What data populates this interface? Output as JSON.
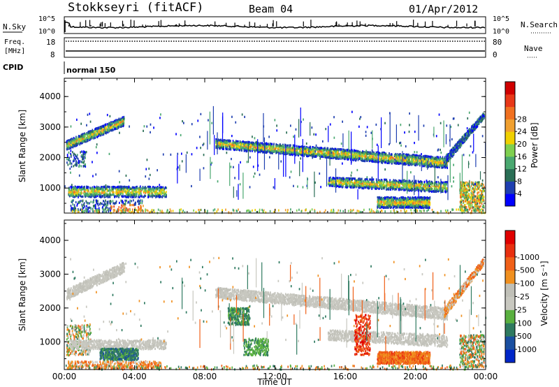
{
  "header": {
    "station": "Stokkseyri (fitACF)",
    "beam": "Beam 04",
    "date": "01/Apr/2012"
  },
  "panels": {
    "sky": {
      "label": "N.Sky",
      "tick_top": "10^5",
      "tick_bottom": "10^0",
      "right_label": "N.Search",
      "right_tick_top": "10^5",
      "right_tick_bottom": "10^0"
    },
    "freq": {
      "label_top": "Freq.",
      "label_unit": "[MHz]",
      "tick_top": "18",
      "tick_bottom": "8",
      "right_label": "Nave",
      "right_tick_top": "80",
      "right_tick_bottom": "0"
    },
    "cpid": {
      "label": "CPID",
      "value": "normal 150"
    }
  },
  "chart_data": [
    {
      "type": "heatmap",
      "name": "power",
      "ylabel": "Slant Range [km]",
      "xlabel": "",
      "ylim": [
        180,
        4600
      ],
      "y_ticks": [
        "1000",
        "2000",
        "3000",
        "4000"
      ],
      "x_ticks": [
        "00:00",
        "04:00",
        "08:00",
        "12:00",
        "16:00",
        "20:00",
        "00:00"
      ],
      "colorbar": {
        "title": "Power [dB]",
        "labels": [
          "4",
          "8",
          "12",
          "16",
          "20",
          "24",
          "28"
        ],
        "colors": [
          "#0000ff",
          "#1f3fb0",
          "#2a6e55",
          "#4aa870",
          "#7fd050",
          "#f0d000",
          "#f0a030",
          "#f07020",
          "#e83818",
          "#d00000"
        ]
      }
    },
    {
      "type": "heatmap",
      "name": "velocity",
      "ylabel": "Slant Range [km]",
      "xlabel": "Time UT",
      "ylim": [
        180,
        4600
      ],
      "y_ticks": [
        "1000",
        "2000",
        "3000",
        "4000"
      ],
      "x_ticks": [
        "00:00",
        "04:00",
        "08:00",
        "12:00",
        "16:00",
        "20:00",
        "00:00"
      ],
      "colorbar": {
        "title": "Velocity [m s⁻¹]",
        "labels": [
          "1000",
          "500",
          "100",
          "25",
          "-25",
          "-100",
          "-500",
          "-1000"
        ],
        "colors": [
          "#0026c8",
          "#1a4fa0",
          "#2f7a60",
          "#5ab040",
          "#c8c8c0",
          "#c0c0b8",
          "#f09020",
          "#f06018",
          "#e83010",
          "#e00000"
        ]
      }
    }
  ]
}
